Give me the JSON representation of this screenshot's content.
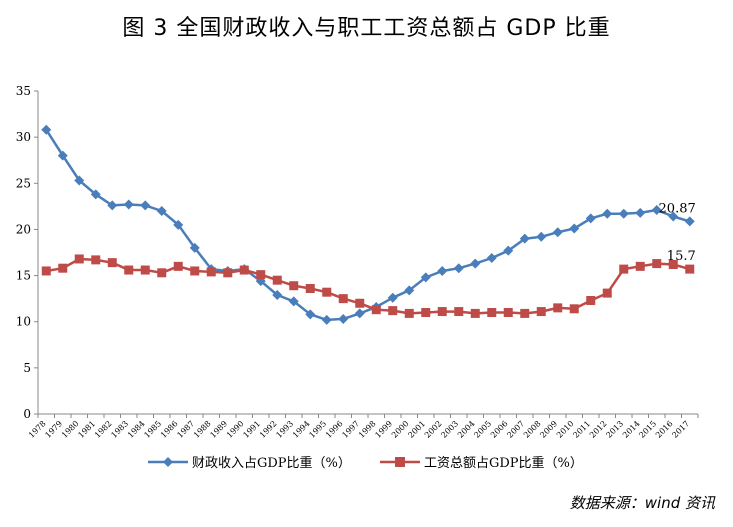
{
  "title": "图 3   全国财政收入与职工工资总额占 GDP 比重",
  "source": "数据来源：wind 资讯",
  "chart_data": {
    "type": "line",
    "title": "图 3   全国财政收入与职工工资总额占 GDP 比重",
    "xlabel": "",
    "ylabel": "",
    "x": [
      "1978",
      "1979",
      "1980",
      "1981",
      "1982",
      "1983",
      "1984",
      "1985",
      "1986",
      "1987",
      "1988",
      "1989",
      "1990",
      "1991",
      "1992",
      "1993",
      "1994",
      "1995",
      "1996",
      "1997",
      "1998",
      "1999",
      "2000",
      "2001",
      "2002",
      "2003",
      "2004",
      "2005",
      "2006",
      "2007",
      "2008",
      "2009",
      "2010",
      "2011",
      "2012",
      "2013",
      "2014",
      "2015",
      "2016",
      "2017"
    ],
    "ylim": [
      0,
      35
    ],
    "yticks": [
      "0",
      "5",
      "10",
      "15",
      "20",
      "25",
      "30",
      "35"
    ],
    "grid": false,
    "legend_position": "bottom",
    "series": [
      {
        "name": "财政收入占GDP比重（%）",
        "color": "#4a7ebb",
        "marker": "diamond",
        "values": [
          30.8,
          28.0,
          25.3,
          23.8,
          22.6,
          22.7,
          22.6,
          22.0,
          20.5,
          18.0,
          15.7,
          15.5,
          15.7,
          14.4,
          12.9,
          12.2,
          10.8,
          10.2,
          10.3,
          10.9,
          11.6,
          12.6,
          13.4,
          14.8,
          15.5,
          15.8,
          16.3,
          16.9,
          17.7,
          19.0,
          19.2,
          19.7,
          20.1,
          21.2,
          21.7,
          21.7,
          21.8,
          22.1,
          21.4,
          20.87
        ],
        "end_label": "20.87"
      },
      {
        "name": "工资总额占GDP比重（%）",
        "color": "#be4b48",
        "marker": "square",
        "values": [
          15.5,
          15.8,
          16.8,
          16.7,
          16.4,
          15.6,
          15.6,
          15.3,
          16.0,
          15.5,
          15.4,
          15.3,
          15.6,
          15.1,
          14.5,
          13.9,
          13.6,
          13.2,
          12.5,
          12.0,
          11.3,
          11.2,
          10.9,
          11.0,
          11.1,
          11.1,
          10.9,
          11.0,
          11.0,
          10.9,
          11.1,
          11.5,
          11.4,
          12.3,
          13.1,
          15.7,
          16.0,
          16.3,
          16.2,
          15.7
        ],
        "end_label": "15.7"
      }
    ]
  }
}
